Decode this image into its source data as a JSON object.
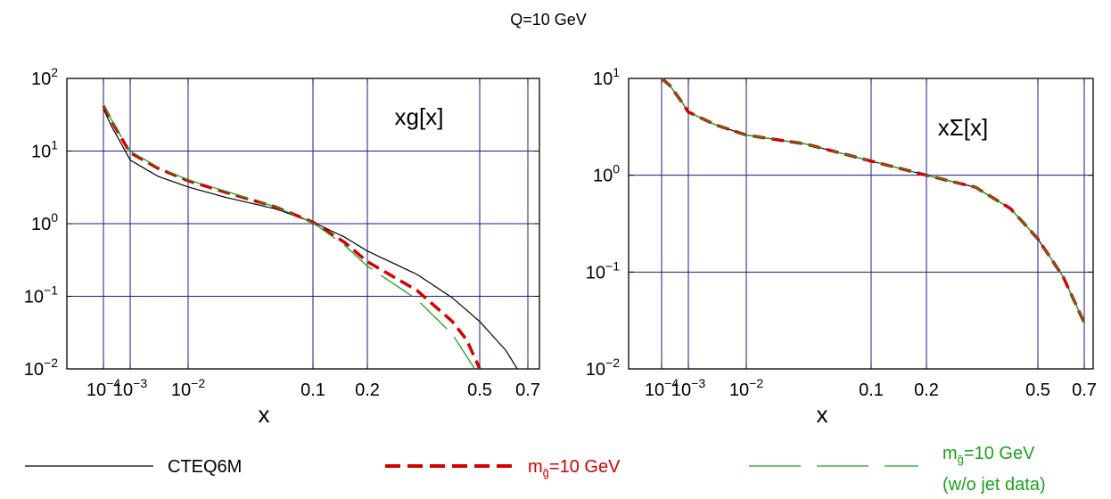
{
  "figure": {
    "title": "Q=10 GeV"
  },
  "legend": {
    "entries": [
      {
        "label": "CTEQ6M",
        "color": "#000000",
        "dash": "solid"
      },
      {
        "label_main": "m",
        "label_sub": "g̃",
        "label_tail": "=10 GeV",
        "color": "#d40000",
        "dash": "dashed"
      },
      {
        "label_main": "m",
        "label_sub": "g̃",
        "label_tail": "=10 GeV",
        "label_line2": "(w/o jet  data)",
        "color": "#1aa31a",
        "dash": "long-dash"
      }
    ]
  },
  "chart_data": [
    {
      "type": "line",
      "label": "xg[x]",
      "xlabel": "x",
      "xscale": "custom (log at small x, linear-like at large x)",
      "yscale": "log",
      "ylim": [
        0.01,
        100
      ],
      "x_ticks": [
        {
          "value": 0.0001,
          "base": "10",
          "exp": "−4"
        },
        {
          "value": 0.001,
          "base": "10",
          "exp": "−3"
        },
        {
          "value": 0.01,
          "base": "10",
          "exp": "−2"
        },
        {
          "value": 0.1,
          "text": "0.1"
        },
        {
          "value": 0.2,
          "text": "0.2"
        },
        {
          "value": 0.5,
          "text": "0.5"
        },
        {
          "value": 0.7,
          "text": "0.7"
        }
      ],
      "y_ticks": [
        {
          "value": 100,
          "base": "10",
          "exp": "2"
        },
        {
          "value": 10,
          "base": "10",
          "exp": "1"
        },
        {
          "value": 1,
          "base": "10",
          "exp": "0"
        },
        {
          "value": 0.1,
          "base": "10",
          "exp": "−1"
        },
        {
          "value": 0.01,
          "base": "10",
          "exp": "−2"
        }
      ],
      "grid": true,
      "series": [
        {
          "name": "CTEQ6M",
          "color": "#000000",
          "dash": "solid",
          "x": [
            0.0001,
            0.0002,
            0.0005,
            0.001,
            0.003,
            0.01,
            0.02,
            0.05,
            0.1,
            0.15,
            0.2,
            0.3,
            0.4,
            0.5,
            0.6,
            0.65
          ],
          "y": [
            38,
            22,
            12,
            7.5,
            4.5,
            3.2,
            2.3,
            1.6,
            1.05,
            0.65,
            0.42,
            0.2,
            0.095,
            0.045,
            0.018,
            0.01
          ]
        },
        {
          "name": "m_g̃=10 GeV",
          "color": "#d40000",
          "dash": "dashed",
          "x": [
            0.0001,
            0.0002,
            0.0005,
            0.001,
            0.003,
            0.01,
            0.02,
            0.05,
            0.1,
            0.15,
            0.2,
            0.3,
            0.4,
            0.45,
            0.5
          ],
          "y": [
            42,
            26,
            14.5,
            9.5,
            5.8,
            3.9,
            2.7,
            1.7,
            1.05,
            0.55,
            0.3,
            0.12,
            0.045,
            0.025,
            0.01
          ]
        },
        {
          "name": "m_g̃=10 GeV (w/o jet  data)",
          "color": "#1aa31a",
          "dash": "long-dash",
          "x": [
            0.0001,
            0.0002,
            0.0005,
            0.001,
            0.003,
            0.01,
            0.02,
            0.05,
            0.1,
            0.15,
            0.2,
            0.3,
            0.4,
            0.48
          ],
          "y": [
            44,
            27,
            15,
            10,
            6.0,
            4.0,
            2.8,
            1.7,
            1.03,
            0.5,
            0.26,
            0.09,
            0.03,
            0.01
          ]
        }
      ]
    },
    {
      "type": "line",
      "label": "xΣ[x]",
      "xlabel": "x",
      "xscale": "custom (log at small x, linear-like at large x)",
      "yscale": "log",
      "ylim": [
        0.01,
        10
      ],
      "x_ticks": [
        {
          "value": 0.0001,
          "base": "10",
          "exp": "−4"
        },
        {
          "value": 0.001,
          "base": "10",
          "exp": "−3"
        },
        {
          "value": 0.01,
          "base": "10",
          "exp": "−2"
        },
        {
          "value": 0.1,
          "text": "0.1"
        },
        {
          "value": 0.2,
          "text": "0.2"
        },
        {
          "value": 0.5,
          "text": "0.5"
        },
        {
          "value": 0.7,
          "text": "0.7"
        }
      ],
      "y_ticks": [
        {
          "value": 10,
          "base": "10",
          "exp": "1"
        },
        {
          "value": 1,
          "base": "10",
          "exp": "0"
        },
        {
          "value": 0.1,
          "base": "10",
          "exp": "−1"
        },
        {
          "value": 0.01,
          "base": "10",
          "exp": "−2"
        }
      ],
      "grid": true,
      "series": [
        {
          "name": "CTEQ6M",
          "color": "#000000",
          "dash": "solid",
          "x": [
            0.0001,
            0.0002,
            0.0005,
            0.001,
            0.003,
            0.01,
            0.03,
            0.1,
            0.2,
            0.3,
            0.4,
            0.5,
            0.6,
            0.7
          ],
          "y": [
            10,
            8.5,
            6.0,
            4.5,
            3.3,
            2.6,
            2.1,
            1.4,
            1.0,
            0.75,
            0.45,
            0.22,
            0.09,
            0.03
          ]
        },
        {
          "name": "m_g̃=10 GeV",
          "color": "#d40000",
          "dash": "dashed",
          "x": [
            0.0001,
            0.0002,
            0.0005,
            0.001,
            0.003,
            0.01,
            0.03,
            0.1,
            0.2,
            0.3,
            0.4,
            0.5,
            0.6,
            0.7
          ],
          "y": [
            10,
            8.5,
            6.0,
            4.5,
            3.3,
            2.6,
            2.1,
            1.4,
            1.0,
            0.75,
            0.45,
            0.22,
            0.09,
            0.03
          ]
        },
        {
          "name": "m_g̃=10 GeV (w/o jet  data)",
          "color": "#1aa31a",
          "dash": "long-dash",
          "x": [
            0.0001,
            0.0002,
            0.0005,
            0.001,
            0.003,
            0.01,
            0.03,
            0.1,
            0.2,
            0.3,
            0.4,
            0.5,
            0.6,
            0.7
          ],
          "y": [
            10,
            8.5,
            6.0,
            4.5,
            3.3,
            2.6,
            2.1,
            1.4,
            1.0,
            0.75,
            0.45,
            0.22,
            0.09,
            0.03
          ]
        }
      ]
    }
  ]
}
